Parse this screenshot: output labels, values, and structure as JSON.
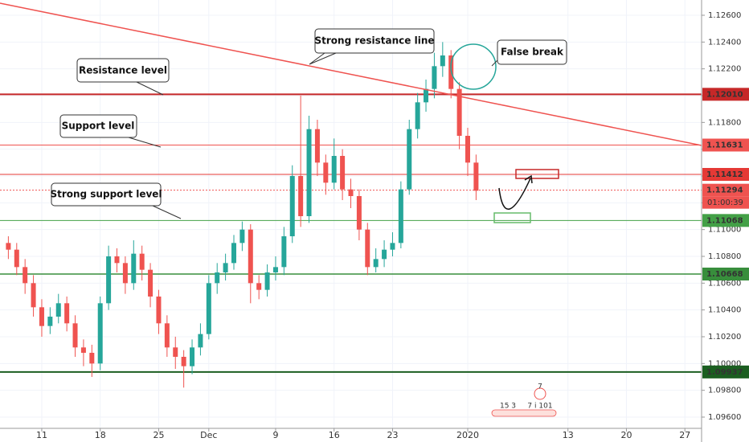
{
  "chart_data": {
    "type": "candlestick",
    "xlim": [
      6,
      90
    ],
    "ylim": [
      1.09516,
      1.12714
    ],
    "grid": true,
    "up_color": "#26a69a",
    "down_color": "#ef5350",
    "xticks": [
      11,
      18,
      25,
      {
        "value": 31,
        "label": "Dec"
      },
      {
        "value": 39,
        "label": "9"
      },
      {
        "value": 46,
        "label": "16"
      },
      {
        "value": 53,
        "label": "23"
      },
      {
        "value": 62,
        "label": "2020"
      },
      {
        "value": 74,
        "label": "13"
      },
      {
        "value": 81,
        "label": "20"
      },
      {
        "value": 88,
        "label": "27"
      }
    ],
    "yticks": [
      {
        "value": 1.126,
        "label": "1.12600"
      },
      {
        "value": 1.124,
        "label": "1.12400"
      },
      {
        "value": 1.122,
        "label": "1.12200"
      },
      {
        "value": 1.12,
        "label": "1.12000"
      },
      {
        "value": 1.118,
        "label": "1.11800"
      },
      {
        "value": 1.116,
        "label": "1.11600"
      },
      {
        "value": 1.114,
        "label": "1.11400"
      },
      {
        "value": 1.112,
        "label": "1.11200"
      },
      {
        "value": 1.11,
        "label": "1.11000"
      },
      {
        "value": 1.108,
        "label": "1.10800"
      },
      {
        "value": 1.106,
        "label": "1.10600"
      },
      {
        "value": 1.104,
        "label": "1.10400"
      },
      {
        "value": 1.102,
        "label": "1.10200"
      },
      {
        "value": 1.1,
        "label": "1.10000"
      },
      {
        "value": 1.098,
        "label": "1.09800"
      },
      {
        "value": 1.096,
        "label": "1.09600"
      }
    ],
    "candles": {
      "x": [
        7,
        8,
        9,
        10,
        11,
        12,
        13,
        14,
        15,
        16,
        17,
        18,
        19,
        20,
        21,
        22,
        23,
        24,
        25,
        26,
        27,
        28,
        29,
        30,
        31,
        32,
        33,
        34,
        35,
        36,
        37,
        38,
        39,
        40,
        41,
        42,
        43,
        44,
        45,
        46,
        47,
        48,
        49,
        50,
        51,
        52,
        53,
        54,
        55,
        56,
        57,
        58,
        59,
        60,
        61,
        62,
        63
      ],
      "open": [
        1.109,
        1.1085,
        1.1072,
        1.106,
        1.1042,
        1.1028,
        1.1035,
        1.1045,
        1.103,
        1.1012,
        1.1008,
        1.1,
        1.1045,
        1.108,
        1.1075,
        1.106,
        1.1082,
        1.107,
        1.105,
        1.103,
        1.1012,
        1.1005,
        1.0998,
        1.1012,
        1.1022,
        1.106,
        1.1068,
        1.1075,
        1.109,
        1.11,
        1.106,
        1.1055,
        1.1068,
        1.1072,
        1.1095,
        1.114,
        1.111,
        1.1175,
        1.115,
        1.1135,
        1.1155,
        1.113,
        1.1125,
        1.11,
        1.1072,
        1.1078,
        1.1085,
        1.109,
        1.113,
        1.1175,
        1.1195,
        1.1205,
        1.1222,
        1.123,
        1.1205,
        1.117,
        1.115
      ],
      "high": [
        1.1095,
        1.109,
        1.1078,
        1.1066,
        1.1048,
        1.1042,
        1.1052,
        1.105,
        1.1036,
        1.1018,
        1.1014,
        1.105,
        1.1088,
        1.1086,
        1.108,
        1.1092,
        1.1088,
        1.1075,
        1.1055,
        1.1036,
        1.102,
        1.101,
        1.1018,
        1.103,
        1.1066,
        1.1075,
        1.1082,
        1.1096,
        1.1106,
        1.1104,
        1.1066,
        1.1074,
        1.108,
        1.1102,
        1.1148,
        1.12,
        1.1185,
        1.1182,
        1.1156,
        1.1168,
        1.116,
        1.1138,
        1.113,
        1.1105,
        1.1086,
        1.1092,
        1.1098,
        1.1136,
        1.1182,
        1.1202,
        1.1212,
        1.1232,
        1.124,
        1.1234,
        1.121,
        1.1176,
        1.1156
      ],
      "low": [
        1.1078,
        1.1066,
        1.1052,
        1.1035,
        1.102,
        1.1022,
        1.103,
        1.1024,
        1.1005,
        1.0998,
        1.099,
        1.0995,
        1.104,
        1.1068,
        1.1052,
        1.1055,
        1.1062,
        1.1042,
        1.1022,
        1.1005,
        1.0996,
        1.0982,
        1.0992,
        1.1006,
        1.1018,
        1.1052,
        1.1062,
        1.107,
        1.1084,
        1.1045,
        1.1048,
        1.105,
        1.1062,
        1.1066,
        1.109,
        1.1102,
        1.1105,
        1.114,
        1.1126,
        1.113,
        1.1122,
        1.1116,
        1.1092,
        1.1066,
        1.1068,
        1.1072,
        1.108,
        1.1086,
        1.1126,
        1.1168,
        1.1188,
        1.1198,
        1.1214,
        1.1198,
        1.116,
        1.114,
        1.1122
      ],
      "close": [
        1.1085,
        1.1072,
        1.106,
        1.1042,
        1.1028,
        1.1035,
        1.1045,
        1.103,
        1.1012,
        1.1008,
        1.1,
        1.1045,
        1.108,
        1.1075,
        1.106,
        1.1082,
        1.107,
        1.105,
        1.103,
        1.1012,
        1.1005,
        1.0998,
        1.1012,
        1.1022,
        1.106,
        1.1068,
        1.1075,
        1.109,
        1.11,
        1.106,
        1.1055,
        1.1068,
        1.1072,
        1.1095,
        1.114,
        1.111,
        1.1175,
        1.115,
        1.1135,
        1.1155,
        1.113,
        1.1125,
        1.11,
        1.1072,
        1.1078,
        1.1085,
        1.109,
        1.113,
        1.1175,
        1.1195,
        1.1205,
        1.1222,
        1.123,
        1.1205,
        1.117,
        1.115,
        1.1129
      ]
    },
    "price_levels": [
      {
        "value": 1.1201,
        "label": "1.12010",
        "color": "#c62828",
        "width": 2,
        "dashed": false
      },
      {
        "value": 1.11631,
        "label": "1.11631",
        "color": "#ef5350",
        "width": 1,
        "dashed": false
      },
      {
        "value": 1.11412,
        "label": "1.11412",
        "color": "#e53935",
        "width": 1,
        "dashed": false
      },
      {
        "value": 1.11294,
        "label": "1.11294",
        "color": "#ef5350",
        "width": 1,
        "dashed": true
      },
      {
        "value": 1.11068,
        "label": "1.11068",
        "color": "#43a047",
        "width": 1,
        "dashed": false
      },
      {
        "value": 1.10668,
        "label": "1.10668",
        "color": "#388e3c",
        "width": 1.5,
        "dashed": false
      },
      {
        "value": 1.09937,
        "label": "1.09937",
        "color": "#1b5e20",
        "width": 2,
        "dashed": false
      }
    ],
    "countdown": "01:00:39",
    "trend_line": {
      "x": [
        6,
        90
      ],
      "y": [
        1.1269,
        1.11628
      ],
      "color": "#ef5350"
    },
    "annotations": [
      "Strong resistance line",
      "Resistance level",
      "Support level",
      "Strong support level",
      "False break"
    ],
    "event_badges": [
      "7",
      "15  3",
      "7 i 101"
    ]
  }
}
